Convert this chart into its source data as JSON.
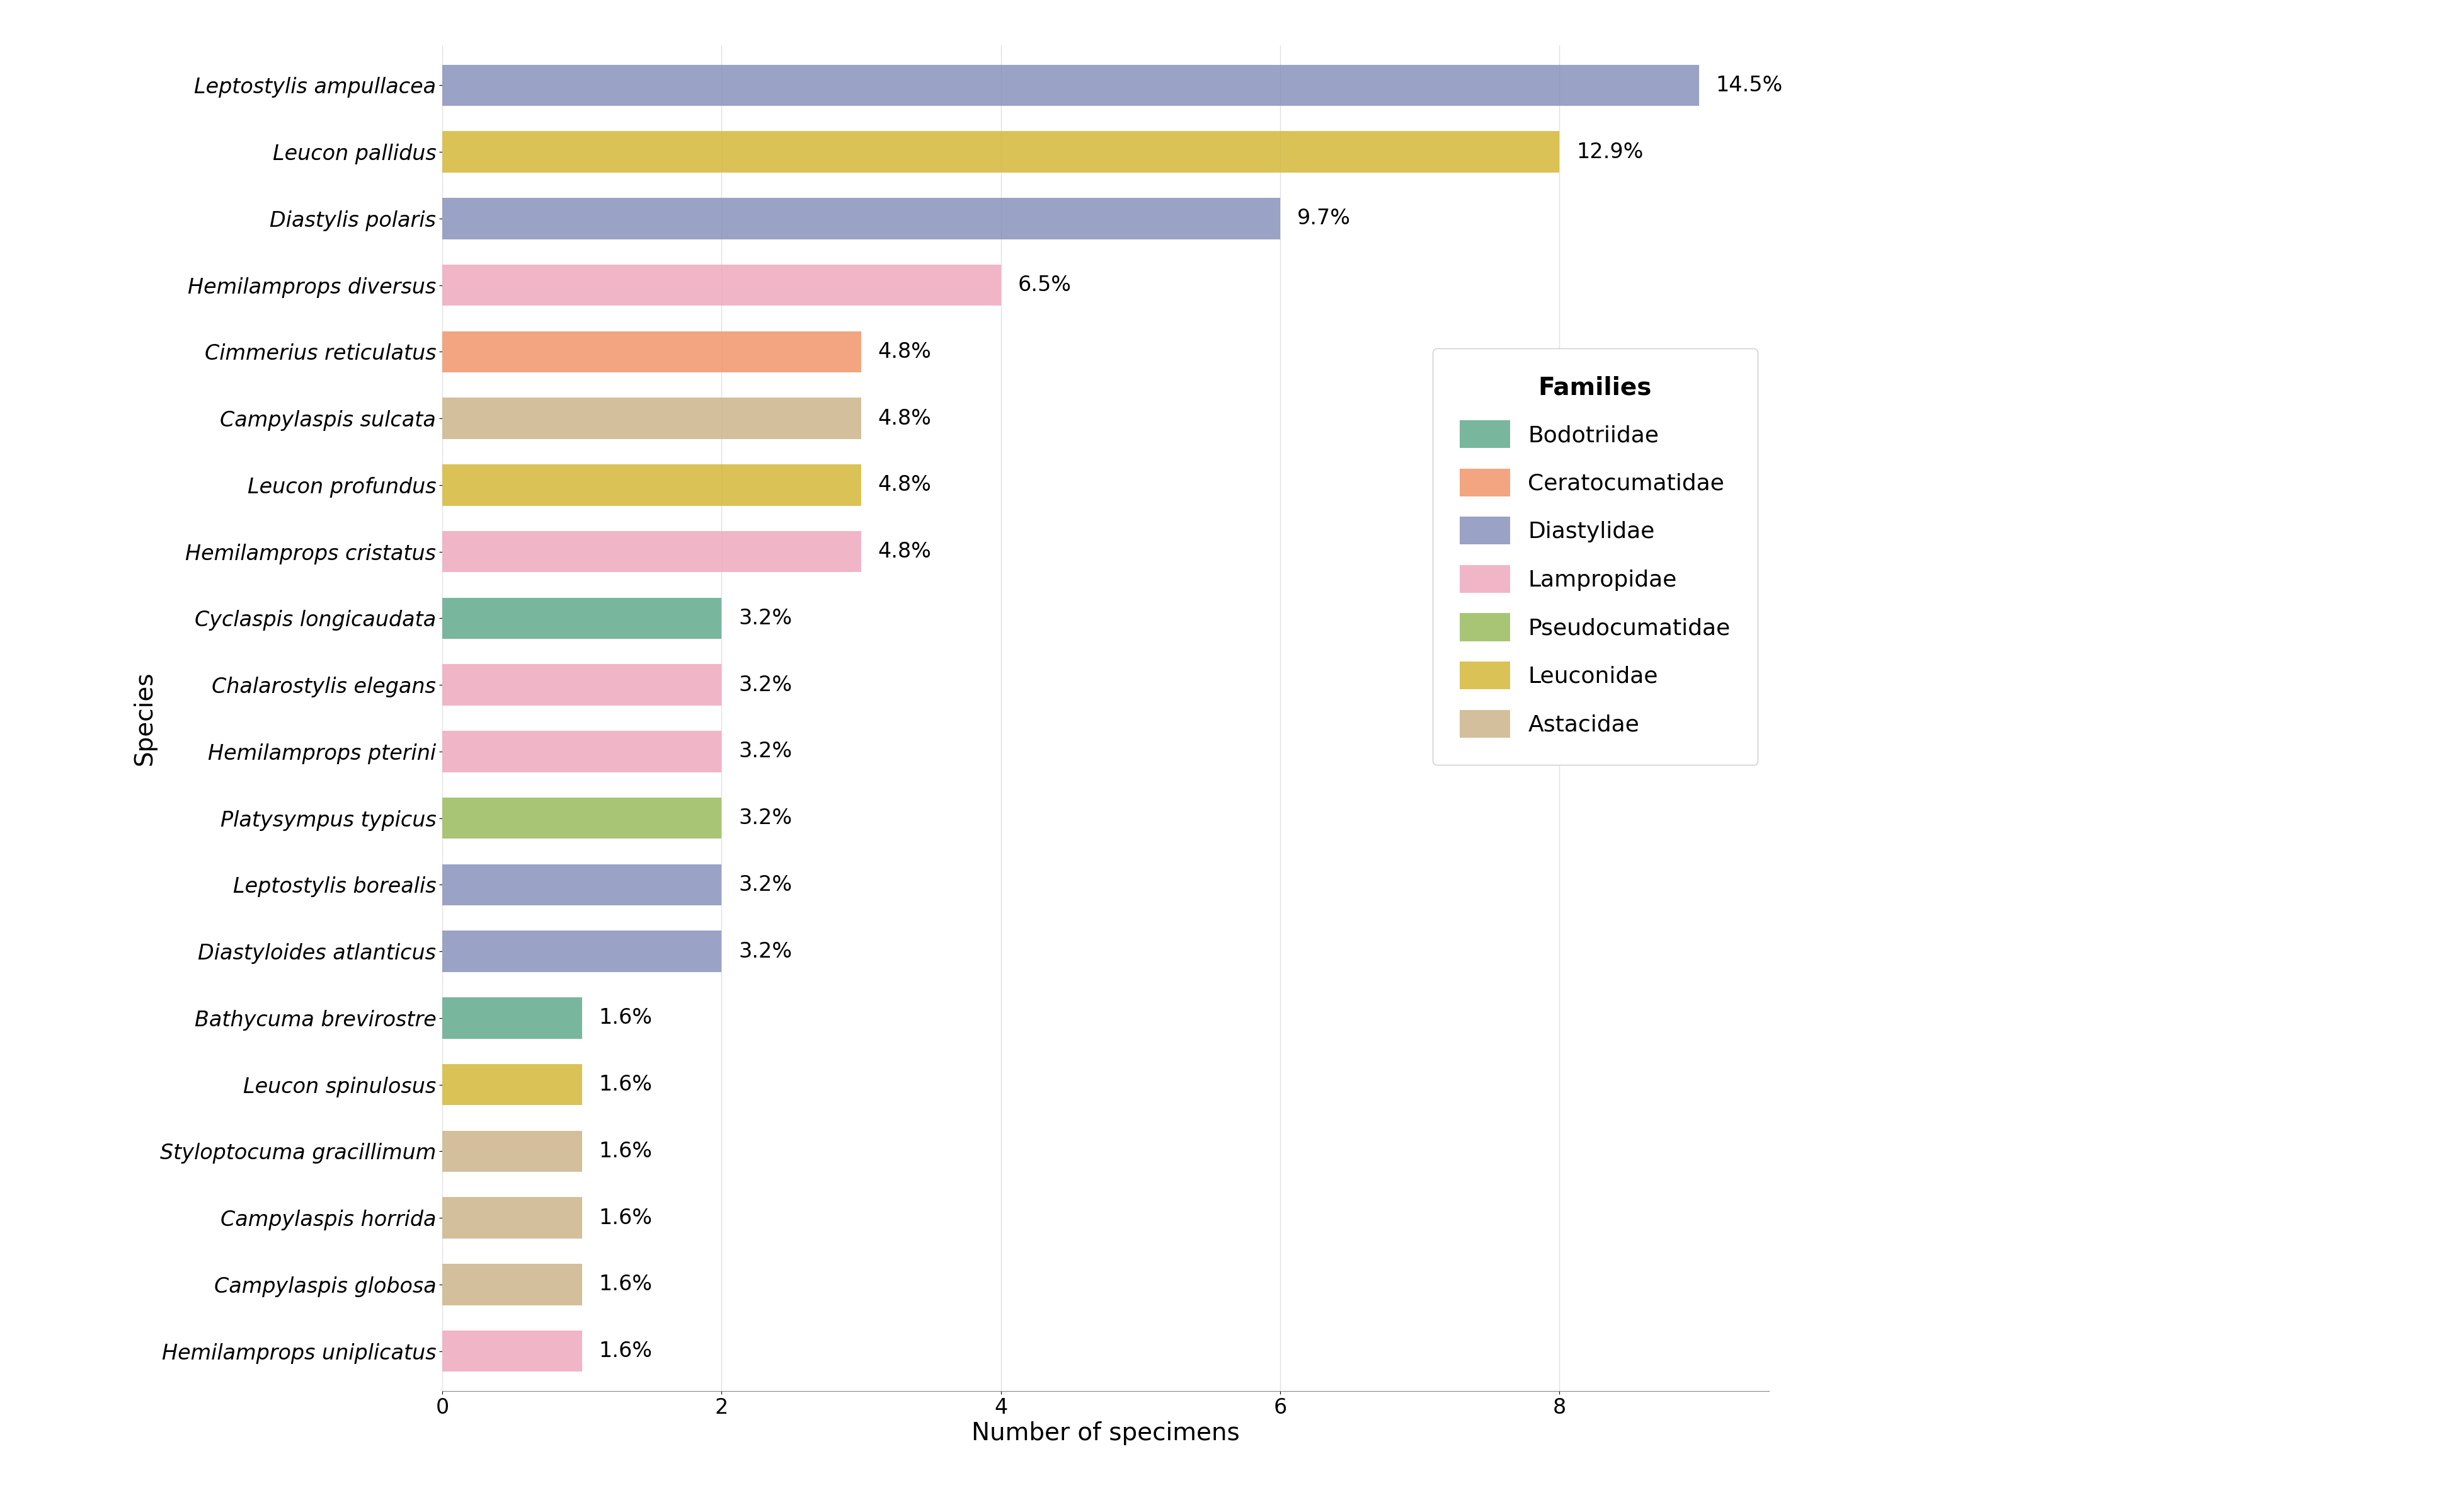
{
  "species": [
    "Leptostylis ampullacea",
    "Leucon pallidus",
    "Diastylis polaris",
    "Hemilamprops diversus",
    "Cimmerius reticulatus",
    "Campylaspis sulcata",
    "Leucon profundus",
    "Hemilamprops cristatus",
    "Cyclaspis longicaudata",
    "Chalarostylis elegans",
    "Hemilamprops pterini",
    "Platysympus typicus",
    "Leptostylis borealis",
    "Diastyloides atlanticus",
    "Bathycuma brevirostre",
    "Leucon spinulosus",
    "Styloptocuma gracillimum",
    "Campylaspis horrida",
    "Campylaspis globosa",
    "Hemilamprops uniplicatus"
  ],
  "values": [
    9,
    8,
    6,
    4,
    3,
    3,
    3,
    3,
    2,
    2,
    2,
    2,
    2,
    2,
    1,
    1,
    1,
    1,
    1,
    1
  ],
  "percentages": [
    "14.5%",
    "12.9%",
    "9.7%",
    "6.5%",
    "4.8%",
    "4.8%",
    "4.8%",
    "4.8%",
    "3.2%",
    "3.2%",
    "3.2%",
    "3.2%",
    "3.2%",
    "3.2%",
    "1.6%",
    "1.6%",
    "1.6%",
    "1.6%",
    "1.6%",
    "1.6%"
  ],
  "families": [
    "Diastylidae",
    "Leuconidae",
    "Diastylidae",
    "Lampropidae",
    "Ceratocumatidae",
    "Astacidae",
    "Leuconidae",
    "Lampropidae",
    "Bodotriidae",
    "Lampropidae",
    "Lampropidae",
    "Pseudocumatidae",
    "Diastylidae",
    "Diastylidae",
    "Bodotriidae",
    "Leuconidae",
    "Astacidae",
    "Astacidae",
    "Astacidae",
    "Lampropidae"
  ],
  "family_colors": {
    "Bodotriidae": "#62AA8D",
    "Ceratocumatidae": "#F0956A",
    "Diastylidae": "#8892BB",
    "Lampropidae": "#EFA8BF",
    "Pseudocumatidae": "#99BB5E",
    "Leuconidae": "#D4B83A",
    "Astacidae": "#CCB48A"
  },
  "family_order": [
    "Bodotriidae",
    "Ceratocumatidae",
    "Diastylidae",
    "Lampropidae",
    "Pseudocumatidae",
    "Leuconidae",
    "Astacidae"
  ],
  "xlabel": "Number of specimens",
  "ylabel": "Species",
  "legend_title": "Families",
  "xlim": [
    0,
    9.5
  ],
  "xticks": [
    0,
    2,
    4,
    6,
    8
  ],
  "background_color": "#ffffff",
  "bar_height": 0.62,
  "label_fontsize": 28,
  "tick_fontsize": 24,
  "pct_fontsize": 24,
  "legend_fontsize": 26,
  "legend_title_fontsize": 28
}
